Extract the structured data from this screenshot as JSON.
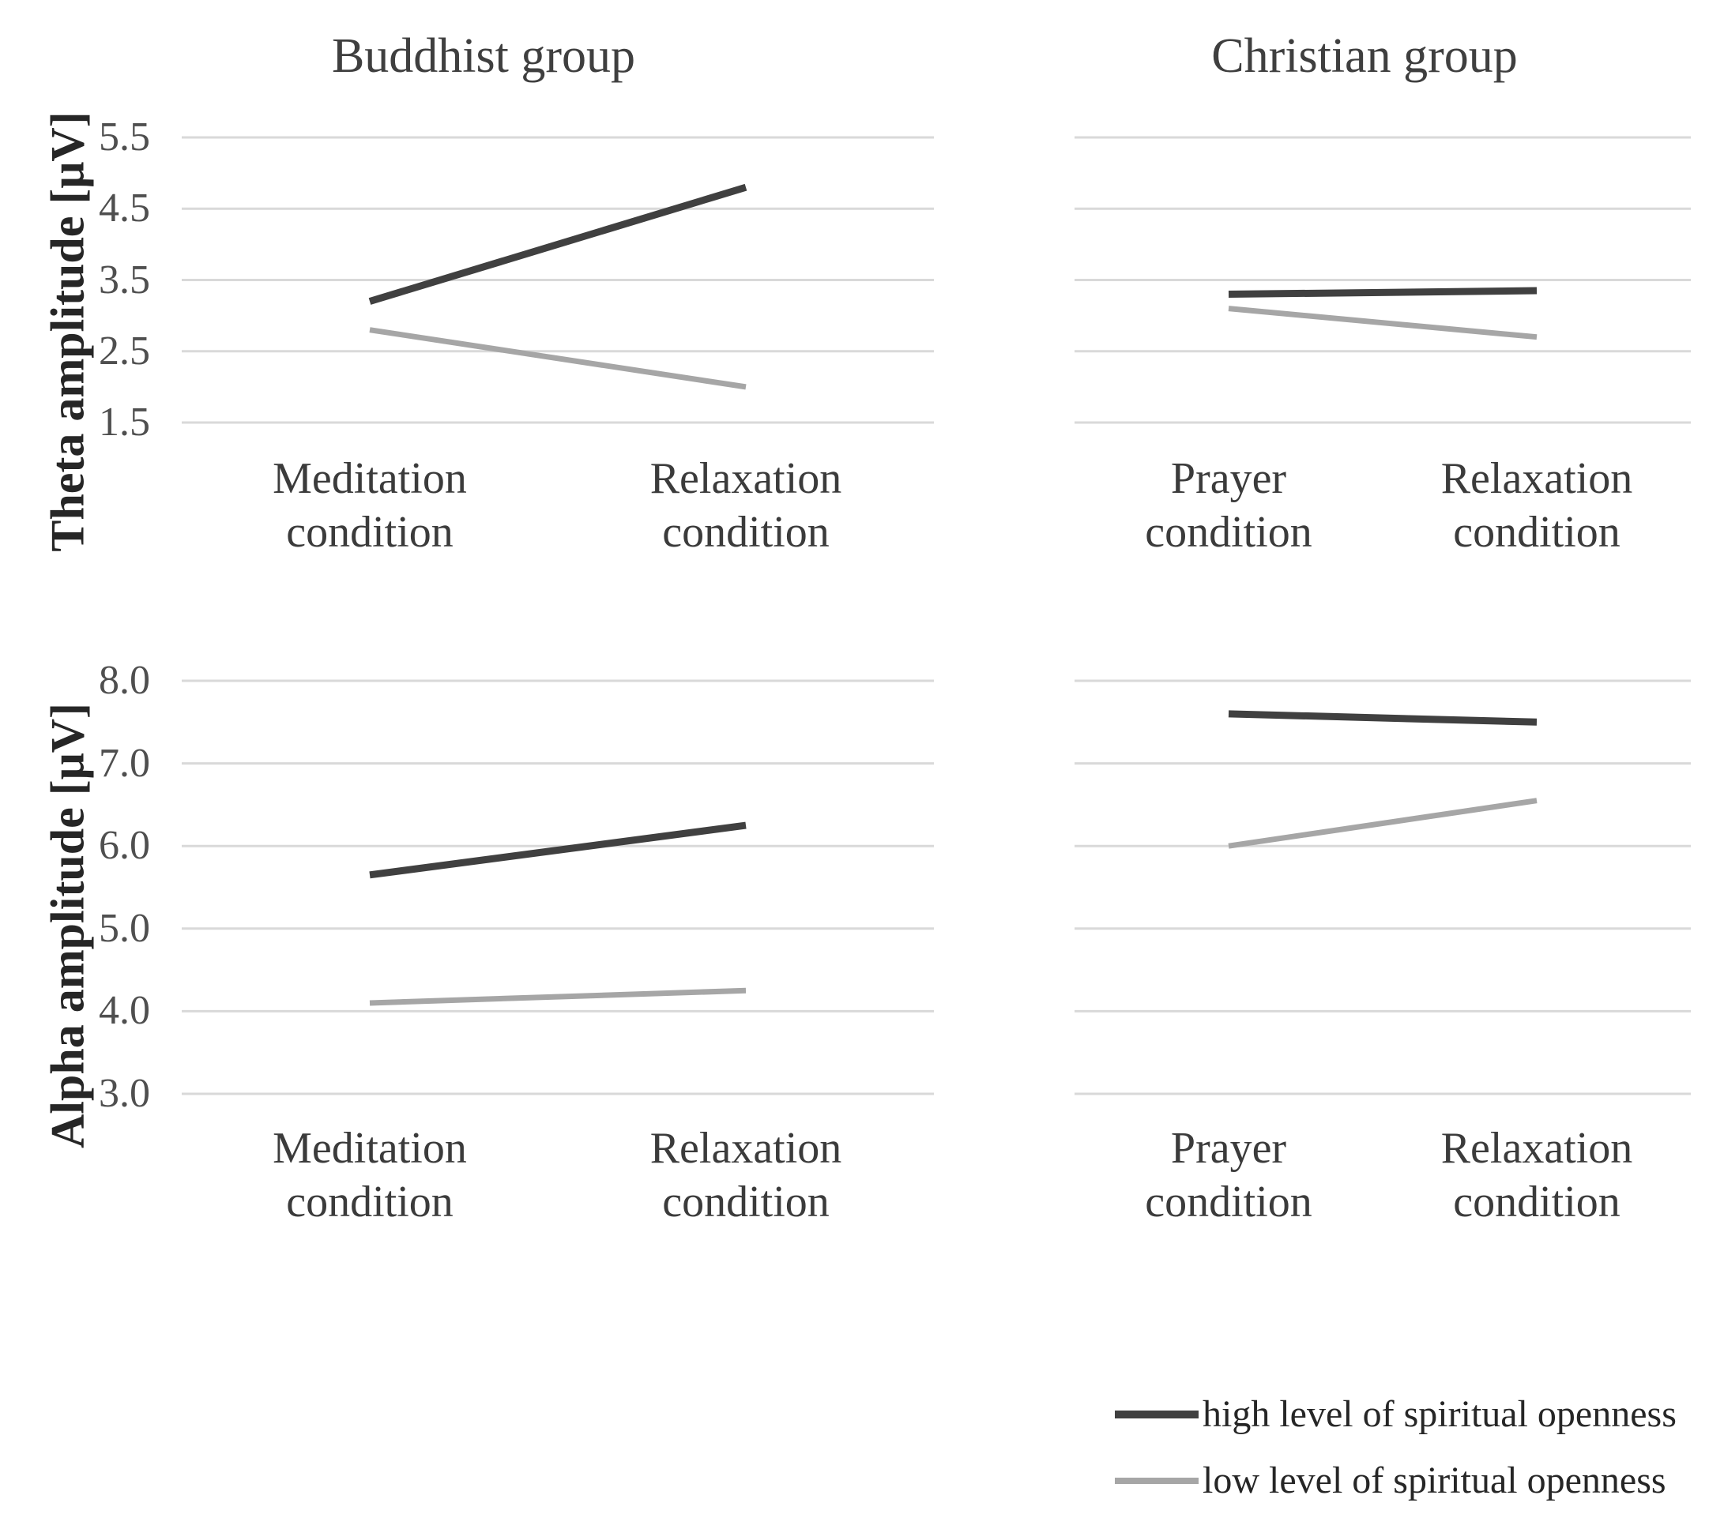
{
  "figure": {
    "column_titles": [
      "Buddhist group",
      "Christian group"
    ],
    "legend": [
      {
        "label": "high level of spiritual openness",
        "color": "#404040"
      },
      {
        "label": "low level of spiritual openness",
        "color": "#a6a6a6"
      }
    ]
  },
  "colors": {
    "high_line": "#404040",
    "low_line": "#a6a6a6",
    "gridline": "#d9d9d9",
    "text": "#3b3b3b"
  },
  "chart_data": [
    {
      "id": "theta-buddhist",
      "type": "line",
      "group_title": "Buddhist group",
      "ylabel": "Theta amplitude [μV]",
      "categories": [
        "Meditation condition",
        "Relaxation condition"
      ],
      "category_lines": [
        [
          "Meditation",
          "condition"
        ],
        [
          "Relaxation",
          "condition"
        ]
      ],
      "ylim": [
        1.5,
        5.5
      ],
      "yticks": [
        5.5,
        4.5,
        3.5,
        2.5,
        1.5
      ],
      "ytick_labels": [
        "5.5",
        "4.5",
        "3.5",
        "2.5",
        "1.5"
      ],
      "grid": true,
      "legend_position": "none",
      "series": [
        {
          "name": "high level of spiritual openness",
          "values": [
            3.2,
            4.8
          ]
        },
        {
          "name": "low level of spiritual openness",
          "values": [
            2.8,
            2.0
          ]
        }
      ]
    },
    {
      "id": "theta-christian",
      "type": "line",
      "group_title": "Christian group",
      "ylabel": "Theta amplitude [μV]",
      "categories": [
        "Prayer condition",
        "Relaxation condition"
      ],
      "category_lines": [
        [
          "Prayer",
          "condition"
        ],
        [
          "Relaxation",
          "condition"
        ]
      ],
      "ylim": [
        1.5,
        5.5
      ],
      "yticks": [
        5.5,
        4.5,
        3.5,
        2.5,
        1.5
      ],
      "ytick_labels": [],
      "grid": true,
      "legend_position": "none",
      "series": [
        {
          "name": "high level of spiritual openness",
          "values": [
            3.3,
            3.35
          ]
        },
        {
          "name": "low level of spiritual openness",
          "values": [
            3.1,
            2.7
          ]
        }
      ]
    },
    {
      "id": "alpha-buddhist",
      "type": "line",
      "group_title": "Buddhist group",
      "ylabel": "Alpha amplitude [μV]",
      "categories": [
        "Meditation condition",
        "Relaxation condition"
      ],
      "category_lines": [
        [
          "Meditation",
          "condition"
        ],
        [
          "Relaxation",
          "condition"
        ]
      ],
      "ylim": [
        3.0,
        8.0
      ],
      "yticks": [
        8.0,
        7.0,
        6.0,
        5.0,
        4.0,
        3.0
      ],
      "ytick_labels": [
        "8.0",
        "7.0",
        "6.0",
        "5.0",
        "4.0",
        "3.0"
      ],
      "grid": true,
      "legend_position": "none",
      "series": [
        {
          "name": "high level of spiritual openness",
          "values": [
            5.65,
            6.25
          ]
        },
        {
          "name": "low level of spiritual openness",
          "values": [
            4.1,
            4.25
          ]
        }
      ]
    },
    {
      "id": "alpha-christian",
      "type": "line",
      "group_title": "Christian group",
      "ylabel": "Alpha amplitude [μV]",
      "categories": [
        "Prayer condition",
        "Relaxation condition"
      ],
      "category_lines": [
        [
          "Prayer",
          "condition"
        ],
        [
          "Relaxation",
          "condition"
        ]
      ],
      "ylim": [
        3.0,
        8.0
      ],
      "yticks": [
        8.0,
        7.0,
        6.0,
        5.0,
        4.0,
        3.0
      ],
      "ytick_labels": [],
      "grid": true,
      "legend_position": "bottom-right",
      "series": [
        {
          "name": "high level of spiritual openness",
          "values": [
            7.6,
            7.5
          ]
        },
        {
          "name": "low level of spiritual openness",
          "values": [
            6.0,
            6.55
          ]
        }
      ]
    }
  ]
}
